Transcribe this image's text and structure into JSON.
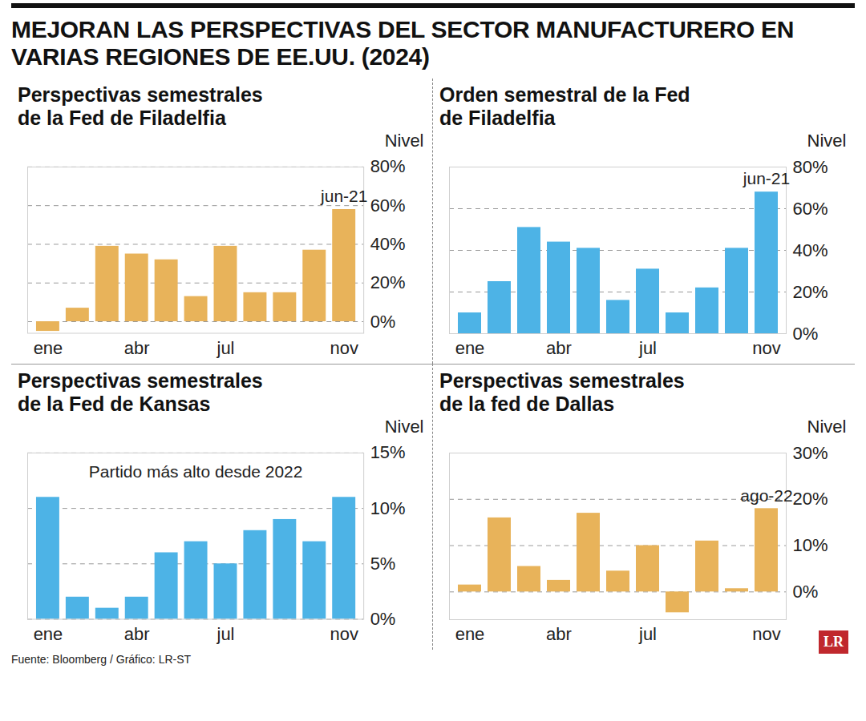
{
  "chart_data": [
    {
      "type": "bar",
      "title": "MEJORAN LAS PERSPECTIVAS DEL SECTOR MANUFACTURERO EN VARIAS REGIONES DE EE.UU. (2024)",
      "subtitle": "Perspectivas semestrales de la Fed de Filadelfia",
      "y_label": "Nivel",
      "categories": [
        "ene",
        null,
        null,
        "abr",
        null,
        null,
        "jul",
        null,
        null,
        null,
        "nov"
      ],
      "values": [
        -5,
        7,
        39,
        35,
        32,
        13,
        39,
        15,
        15,
        37,
        58
      ],
      "color": "#e8b35a",
      "ylim": [
        -6,
        80
      ],
      "yticks": [
        {
          "value": 0,
          "label": "0%"
        },
        {
          "value": 20,
          "label": "20%"
        },
        {
          "value": 40,
          "label": "40%"
        },
        {
          "value": 60,
          "label": "60%"
        },
        {
          "value": 80,
          "label": "80%"
        }
      ],
      "grid": true,
      "annotations": [
        {
          "text": "jun-21",
          "x": "nov"
        }
      ]
    },
    {
      "type": "bar",
      "subtitle": "Orden semestral de la Fed de Filadelfia",
      "y_label": "Nivel",
      "categories": [
        "ene",
        null,
        null,
        "abr",
        null,
        null,
        "jul",
        null,
        null,
        null,
        "nov"
      ],
      "values": [
        10,
        25,
        51,
        44,
        41,
        16,
        31,
        10,
        22,
        41,
        68
      ],
      "color": "#4db3e6",
      "ylim": [
        0,
        80
      ],
      "yticks": [
        {
          "value": 0,
          "label": "0%"
        },
        {
          "value": 20,
          "label": "20%"
        },
        {
          "value": 40,
          "label": "40%"
        },
        {
          "value": 60,
          "label": "60%"
        },
        {
          "value": 80,
          "label": "80%"
        }
      ],
      "grid": true,
      "annotations": [
        {
          "text": "jun-21",
          "x": "nov"
        }
      ]
    },
    {
      "type": "bar",
      "subtitle": "Perspectivas semestrales de la Fed de Kansas",
      "y_label": "Nivel",
      "categories": [
        "ene",
        null,
        null,
        "abr",
        null,
        null,
        "jul",
        null,
        null,
        null,
        "nov"
      ],
      "values": [
        11,
        2,
        1,
        2,
        6,
        7,
        5,
        8,
        9,
        7,
        11
      ],
      "color": "#4db3e6",
      "ylim": [
        0,
        15
      ],
      "yticks": [
        {
          "value": 0,
          "label": "0%"
        },
        {
          "value": 5,
          "label": "5%"
        },
        {
          "value": 10,
          "label": "10%"
        },
        {
          "value": 15,
          "label": "15%"
        }
      ],
      "grid": true,
      "annotations": [
        {
          "text": "Partido más alto desde 2022"
        }
      ]
    },
    {
      "type": "bar",
      "subtitle": "Perspectivas semestrales de la fed de Dallas",
      "y_label": "Nivel",
      "categories": [
        "ene",
        null,
        null,
        "abr",
        null,
        null,
        "jul",
        null,
        null,
        null,
        "nov"
      ],
      "values": [
        1.5,
        16,
        5.5,
        2.5,
        17,
        4.5,
        10,
        -4.5,
        11,
        0.7,
        18
      ],
      "color": "#e8b35a",
      "ylim": [
        -6,
        30
      ],
      "yticks": [
        {
          "value": 0,
          "label": "0%"
        },
        {
          "value": 10,
          "label": "10%"
        },
        {
          "value": 20,
          "label": "20%"
        },
        {
          "value": 30,
          "label": "30%"
        }
      ],
      "grid": true,
      "annotations": [
        {
          "text": "ago-22",
          "x": "nov"
        }
      ],
      "source": "Fuente: Bloomberg / Gráfico: LR-ST",
      "logo": "LR"
    }
  ]
}
